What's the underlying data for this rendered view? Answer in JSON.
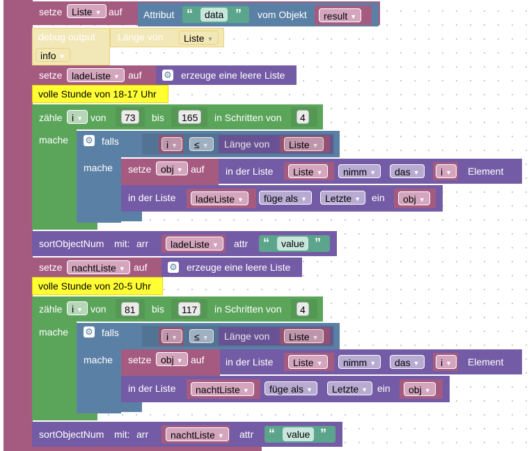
{
  "program": {
    "set_list": {
      "keyword": "setze",
      "var": "Liste",
      "auf": "auf",
      "attr": "Attribut",
      "attr_name": "data",
      "vom": "vom Objekt",
      "obj": "result"
    },
    "debug": {
      "label": "debug output",
      "laenge": "Länge von",
      "var": "Liste",
      "level": "info"
    },
    "set_lade": {
      "keyword": "setze",
      "var": "ladeListe",
      "auf": "auf",
      "create": "erzeuge eine leere Liste"
    },
    "comment1": "volle Stunde von 18-17 Uhr",
    "loop1": {
      "count": "zähle",
      "var": "i",
      "von": "von",
      "from": "73",
      "bis": "bis",
      "to": "165",
      "step_label": "in Schritten von",
      "step": "4",
      "mache": "mache"
    },
    "if1": {
      "falls": "falls",
      "var": "i",
      "op": "≤",
      "laenge": "Länge von",
      "list": "Liste",
      "mache": "mache"
    },
    "set_obj1": {
      "keyword": "setze",
      "var": "obj",
      "auf": "auf",
      "in_list": "in der Liste",
      "list": "Liste",
      "take": "nimm",
      "das": "das",
      "index": "i",
      "element": "Element"
    },
    "insert1": {
      "in_list": "in der Liste",
      "list": "ladeListe",
      "insert": "füge als",
      "pos": "Letzte",
      "ein": "ein",
      "item": "obj"
    },
    "sort1": {
      "name": "sortObjectNum",
      "mit": "mit:",
      "arr": "arr",
      "list": "ladeListe",
      "attr": "attr",
      "value": "value"
    },
    "set_nacht": {
      "keyword": "setze",
      "var": "nachtListe",
      "auf": "auf",
      "create": "erzeuge eine leere Liste"
    },
    "comment2": "volle Stunde von 20-5 Uhr",
    "loop2": {
      "count": "zähle",
      "var": "i",
      "von": "von",
      "from": "81",
      "bis": "bis",
      "to": "117",
      "step_label": "in Schritten von",
      "step": "4",
      "mache": "mache"
    },
    "if2": {
      "falls": "falls",
      "var": "i",
      "op": "≤",
      "laenge": "Länge von",
      "list": "Liste",
      "mache": "mache"
    },
    "set_obj2": {
      "keyword": "setze",
      "var": "obj",
      "auf": "auf",
      "in_list": "in der Liste",
      "list": "Liste",
      "take": "nimm",
      "das": "das",
      "index": "i",
      "element": "Element"
    },
    "insert2": {
      "in_list": "in der Liste",
      "list": "nachtListe",
      "insert": "füge als",
      "pos": "Letzte",
      "ein": "ein",
      "item": "obj"
    },
    "sort2": {
      "name": "sortObjectNum",
      "mit": "mit:",
      "arr": "arr",
      "list": "nachtListe",
      "attr": "attr",
      "value": "value"
    }
  },
  "icons": {
    "gear": "gear-icon",
    "dropdown": "dropdown-arrow-icon"
  },
  "colors": {
    "variables": "#a55b80",
    "lists": "#745ba5",
    "logic": "#5b80a5",
    "loops": "#5ba55b",
    "text": "#5ba58c",
    "comment": "#ffff33"
  }
}
